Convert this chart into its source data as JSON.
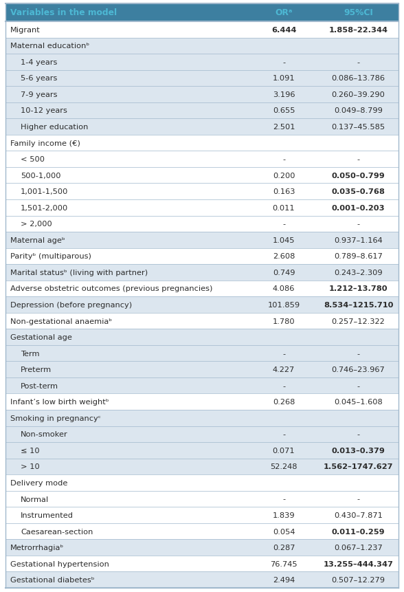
{
  "header": [
    "Variables in the model",
    "ORᵃ",
    "95%CI"
  ],
  "rows": [
    {
      "label": "Migrant",
      "indent": 0,
      "or": "6.444",
      "or_bold": true,
      "ci": "1.858–22.344",
      "ci_bold": true,
      "bg": "white",
      "is_group": false
    },
    {
      "label": "Maternal educationᵇ",
      "indent": 0,
      "or": "",
      "or_bold": false,
      "ci": "",
      "ci_bold": false,
      "bg": "light",
      "is_group": true
    },
    {
      "label": "1-4 years",
      "indent": 1,
      "or": "-",
      "or_bold": false,
      "ci": "-",
      "ci_bold": false,
      "bg": "light",
      "is_group": false
    },
    {
      "label": "5-6 years",
      "indent": 1,
      "or": "1.091",
      "or_bold": false,
      "ci": "0.086–13.786",
      "ci_bold": false,
      "bg": "light",
      "is_group": false
    },
    {
      "label": "7-9 years",
      "indent": 1,
      "or": "3.196",
      "or_bold": false,
      "ci": "0.260–39.290",
      "ci_bold": false,
      "bg": "light",
      "is_group": false
    },
    {
      "label": "10-12 years",
      "indent": 1,
      "or": "0.655",
      "or_bold": false,
      "ci": "0.049–8.799",
      "ci_bold": false,
      "bg": "light",
      "is_group": false
    },
    {
      "label": "Higher education",
      "indent": 1,
      "or": "2.501",
      "or_bold": false,
      "ci": "0.137–45.585",
      "ci_bold": false,
      "bg": "light",
      "is_group": false
    },
    {
      "label": "Family income (€)",
      "indent": 0,
      "or": "",
      "or_bold": false,
      "ci": "",
      "ci_bold": false,
      "bg": "white",
      "is_group": true
    },
    {
      "label": "< 500",
      "indent": 1,
      "or": "-",
      "or_bold": false,
      "ci": "-",
      "ci_bold": false,
      "bg": "white",
      "is_group": false
    },
    {
      "label": "500-1,000",
      "indent": 1,
      "or": "0.200",
      "or_bold": false,
      "ci": "0.050–0.799",
      "ci_bold": true,
      "bg": "white",
      "is_group": false
    },
    {
      "label": "1,001-1,500",
      "indent": 1,
      "or": "0.163",
      "or_bold": false,
      "ci": "0.035–0.768",
      "ci_bold": true,
      "bg": "white",
      "is_group": false
    },
    {
      "label": "1,501-2,000",
      "indent": 1,
      "or": "0.011",
      "or_bold": false,
      "ci": "0.001–0.203",
      "ci_bold": true,
      "bg": "white",
      "is_group": false
    },
    {
      "label": "> 2,000",
      "indent": 1,
      "or": "-",
      "or_bold": false,
      "ci": "-",
      "ci_bold": false,
      "bg": "white",
      "is_group": false
    },
    {
      "label": "Maternal ageᵇ",
      "indent": 0,
      "or": "1.045",
      "or_bold": false,
      "ci": "0.937–1.164",
      "ci_bold": false,
      "bg": "light",
      "is_group": false
    },
    {
      "label": "Parityᵇ (multiparous)",
      "indent": 0,
      "or": "2.608",
      "or_bold": false,
      "ci": "0.789–8.617",
      "ci_bold": false,
      "bg": "white",
      "is_group": false
    },
    {
      "label": "Marital statusᵇ (living with partner)",
      "indent": 0,
      "or": "0.749",
      "or_bold": false,
      "ci": "0.243–2.309",
      "ci_bold": false,
      "bg": "light",
      "is_group": false
    },
    {
      "label": "Adverse obstetric outcomes (previous pregnancies)",
      "indent": 0,
      "or": "4.086",
      "or_bold": false,
      "ci": "1.212–13.780",
      "ci_bold": true,
      "bg": "white",
      "is_group": false
    },
    {
      "label": "Depression (before pregnancy)",
      "indent": 0,
      "or": "101.859",
      "or_bold": false,
      "ci": "8.534–1215.710",
      "ci_bold": true,
      "bg": "light",
      "is_group": false
    },
    {
      "label": "Non-gestational anaemiaᵇ",
      "indent": 0,
      "or": "1.780",
      "or_bold": false,
      "ci": "0.257–12.322",
      "ci_bold": false,
      "bg": "white",
      "is_group": false
    },
    {
      "label": "Gestational age",
      "indent": 0,
      "or": "",
      "or_bold": false,
      "ci": "",
      "ci_bold": false,
      "bg": "light",
      "is_group": true
    },
    {
      "label": "Term",
      "indent": 1,
      "or": "-",
      "or_bold": false,
      "ci": "-",
      "ci_bold": false,
      "bg": "light",
      "is_group": false
    },
    {
      "label": "Preterm",
      "indent": 1,
      "or": "4.227",
      "or_bold": false,
      "ci": "0.746–23.967",
      "ci_bold": false,
      "bg": "light",
      "is_group": false
    },
    {
      "label": "Post-term",
      "indent": 1,
      "or": "-",
      "or_bold": false,
      "ci": "-",
      "ci_bold": false,
      "bg": "light",
      "is_group": false
    },
    {
      "label": "Infant’s low birth weightᵇ",
      "indent": 0,
      "or": "0.268",
      "or_bold": false,
      "ci": "0.045–1.608",
      "ci_bold": false,
      "bg": "white",
      "is_group": false
    },
    {
      "label": "Smoking in pregnancyᶜ",
      "indent": 0,
      "or": "",
      "or_bold": false,
      "ci": "",
      "ci_bold": false,
      "bg": "light",
      "is_group": true
    },
    {
      "label": "Non-smoker",
      "indent": 1,
      "or": "-",
      "or_bold": false,
      "ci": "-",
      "ci_bold": false,
      "bg": "light",
      "is_group": false
    },
    {
      "label": "≤ 10",
      "indent": 1,
      "or": "0.071",
      "or_bold": false,
      "ci": "0.013–0.379",
      "ci_bold": true,
      "bg": "light",
      "is_group": false
    },
    {
      "label": "> 10",
      "indent": 1,
      "or": "52.248",
      "or_bold": false,
      "ci": "1.562–1747.627",
      "ci_bold": true,
      "bg": "light",
      "is_group": false
    },
    {
      "label": "Delivery mode",
      "indent": 0,
      "or": "",
      "or_bold": false,
      "ci": "",
      "ci_bold": false,
      "bg": "white",
      "is_group": true
    },
    {
      "label": "Normal",
      "indent": 1,
      "or": "-",
      "or_bold": false,
      "ci": "-",
      "ci_bold": false,
      "bg": "white",
      "is_group": false
    },
    {
      "label": "Instrumented",
      "indent": 1,
      "or": "1.839",
      "or_bold": false,
      "ci": "0.430–7.871",
      "ci_bold": false,
      "bg": "white",
      "is_group": false
    },
    {
      "label": "Caesarean-section",
      "indent": 1,
      "or": "0.054",
      "or_bold": false,
      "ci": "0.011–0.259",
      "ci_bold": true,
      "bg": "white",
      "is_group": false
    },
    {
      "label": "Metrorrhagiaᵇ",
      "indent": 0,
      "or": "0.287",
      "or_bold": false,
      "ci": "0.067–1.237",
      "ci_bold": false,
      "bg": "light",
      "is_group": false
    },
    {
      "label": "Gestational hypertension",
      "indent": 0,
      "or": "76.745",
      "or_bold": false,
      "ci": "13.255–444.347",
      "ci_bold": true,
      "bg": "white",
      "is_group": false
    },
    {
      "label": "Gestational diabetesᵇ",
      "indent": 0,
      "or": "2.494",
      "or_bold": false,
      "ci": "0.507–12.279",
      "ci_bold": false,
      "bg": "light",
      "is_group": false
    }
  ],
  "header_bg": "#3d7fa0",
  "header_text": "#4db8d4",
  "light_bg": "#dce6ef",
  "white_bg": "#ffffff",
  "border_color": "#a0b8cc",
  "text_color": "#2c2c2c",
  "font_size": 8.2,
  "header_font_size": 8.8
}
